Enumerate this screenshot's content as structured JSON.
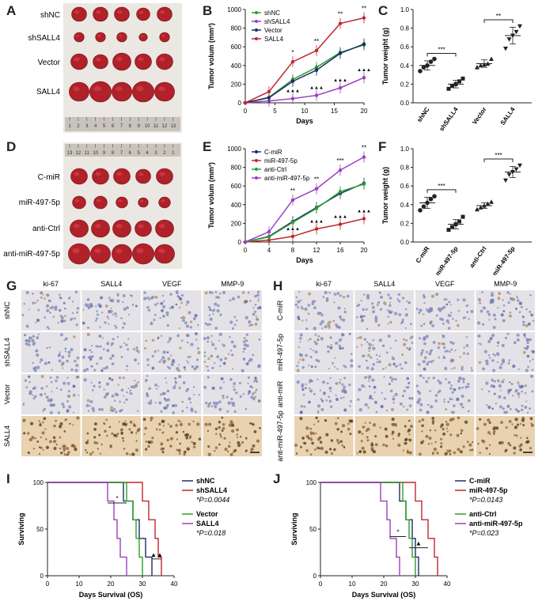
{
  "figure": {
    "panel_letters": [
      "A",
      "B",
      "C",
      "D",
      "E",
      "F",
      "G",
      "H",
      "I",
      "J"
    ]
  },
  "panelA": {
    "rows": [
      "shNC",
      "shSALL4",
      "Vector",
      "SALL4"
    ],
    "ruler": [
      "1",
      "2",
      "3",
      "4",
      "5",
      "6",
      "7",
      "8",
      "9",
      "10",
      "11",
      "12",
      "13"
    ]
  },
  "panelD": {
    "rows": [
      "C-miR",
      "miR-497-5p",
      "anti-Ctrl",
      "anti-miR-497-5p"
    ],
    "ruler": [
      "13",
      "12",
      "11",
      "10",
      "9",
      "8",
      "7",
      "6",
      "5",
      "4",
      "3",
      "2",
      "1"
    ]
  },
  "panelG": {
    "columns": [
      "ki-67",
      "SALL4",
      "VEGF",
      "MMP-9"
    ],
    "rows": [
      "shNC",
      "shSALL4",
      "Vector",
      "SALL4"
    ]
  },
  "panelH": {
    "columns": [
      "ki-67",
      "SALL4",
      "VEGF",
      "MMP-9"
    ],
    "rows": [
      "C-miR",
      "miR-497-5p",
      "anti-miR",
      "anti-miR-497-5p"
    ]
  },
  "colors": {
    "green": "#2ca02c",
    "purple": "#9b3fbf",
    "navy": "#1f2a6b",
    "red": "#c0282d",
    "tumor": "#b0212a",
    "tissue_blue": "#cfd4e6",
    "tissue_brown": "#8a5a2b"
  },
  "chart_data": [
    {
      "id": "B",
      "type": "line",
      "xlabel": "Days",
      "ylabel": "Tumor volum (mm³)",
      "x": [
        0,
        4,
        8,
        12,
        16,
        20
      ],
      "xticks": [
        "0",
        "5",
        "10",
        "15",
        "20"
      ],
      "yticks": [
        "0",
        "200",
        "400",
        "600",
        "800",
        "1000"
      ],
      "ylim": [
        0,
        1000
      ],
      "series": [
        {
          "name": "shNC",
          "color": "#2ca02c",
          "x": [
            0,
            4,
            8,
            12,
            16,
            20
          ],
          "values": [
            0,
            60,
            250,
            380,
            540,
            620
          ]
        },
        {
          "name": "shSALL4",
          "color": "#9b3fbf",
          "x": [
            0,
            4,
            8,
            12,
            16,
            20
          ],
          "values": [
            0,
            20,
            45,
            80,
            160,
            270
          ]
        },
        {
          "name": "Vector",
          "color": "#1f2a6b",
          "x": [
            0,
            4,
            8,
            12,
            16,
            20
          ],
          "values": [
            0,
            55,
            230,
            350,
            530,
            630
          ]
        },
        {
          "name": "SALL4",
          "color": "#c0282d",
          "x": [
            0,
            4,
            8,
            12,
            16,
            20
          ],
          "values": [
            0,
            120,
            440,
            560,
            850,
            910
          ]
        }
      ],
      "annotations_top": [
        "*",
        "**",
        "**",
        "**"
      ],
      "annotations_bottom": [
        "▲▲▲",
        "▲▲▲",
        "▲▲▲",
        "▲▲▲"
      ]
    },
    {
      "id": "E",
      "type": "line",
      "xlabel": "Days",
      "ylabel": "Tumor volum (mm³)",
      "x": [
        0,
        4,
        8,
        12,
        16,
        20
      ],
      "xticks": [
        "0",
        "4",
        "8",
        "12",
        "16",
        "20"
      ],
      "yticks": [
        "0",
        "200",
        "400",
        "600",
        "800",
        "1000"
      ],
      "ylim": [
        0,
        1000
      ],
      "series": [
        {
          "name": "C-miR",
          "color": "#1f2a6b",
          "x": [
            0,
            4,
            8,
            12,
            16,
            20
          ],
          "values": [
            0,
            60,
            220,
            370,
            520,
            630
          ]
        },
        {
          "name": "miR-497-5p",
          "color": "#c0282d",
          "x": [
            0,
            4,
            8,
            12,
            16,
            20
          ],
          "values": [
            0,
            20,
            60,
            140,
            190,
            250
          ]
        },
        {
          "name": "anti-Ctrl",
          "color": "#2ca02c",
          "x": [
            0,
            4,
            8,
            12,
            16,
            20
          ],
          "values": [
            0,
            55,
            210,
            360,
            540,
            620
          ]
        },
        {
          "name": "anti-miR-497-5p",
          "color": "#9b3fbf",
          "x": [
            0,
            4,
            8,
            12,
            16,
            20
          ],
          "values": [
            0,
            110,
            450,
            570,
            770,
            910
          ]
        }
      ],
      "annotations_top": [
        "**",
        "**",
        "***",
        "**"
      ],
      "annotations_bottom": [
        "▲▲▲",
        "▲▲▲",
        "▲▲▲",
        "▲▲▲"
      ]
    },
    {
      "id": "C",
      "type": "scatter",
      "ylabel": "Tumor weight (g)",
      "categories": [
        "shNC",
        "shSALL4",
        "Vector",
        "SALL4"
      ],
      "yticks": [
        "0.0",
        "0.2",
        "0.4",
        "0.6",
        "0.8",
        "1.0"
      ],
      "ylim": [
        0,
        1
      ],
      "points": [
        [
          0.34,
          0.38,
          0.4,
          0.44,
          0.47
        ],
        [
          0.15,
          0.18,
          0.2,
          0.23,
          0.26
        ],
        [
          0.38,
          0.4,
          0.41,
          0.42,
          0.47
        ],
        [
          0.58,
          0.68,
          0.72,
          0.76,
          0.82
        ]
      ],
      "means": [
        0.4,
        0.2,
        0.42,
        0.72
      ],
      "sds": [
        0.05,
        0.04,
        0.04,
        0.09
      ],
      "brackets": [
        {
          "from": 0,
          "to": 1,
          "label": "***"
        },
        {
          "from": 2,
          "to": 3,
          "label": "**"
        }
      ]
    },
    {
      "id": "F",
      "type": "scatter",
      "ylabel": "Tumor weight (g)",
      "categories": [
        "C-miR",
        "miR-497-5p",
        "anti-Ctrl",
        "anti-miR-497-5p"
      ],
      "yticks": [
        "0.0",
        "0.2",
        "0.4",
        "0.6",
        "0.8",
        "1.0"
      ],
      "ylim": [
        0,
        1
      ],
      "points": [
        [
          0.34,
          0.38,
          0.42,
          0.46,
          0.49
        ],
        [
          0.13,
          0.16,
          0.19,
          0.22,
          0.27
        ],
        [
          0.35,
          0.37,
          0.39,
          0.41,
          0.43
        ],
        [
          0.66,
          0.72,
          0.75,
          0.78,
          0.82
        ]
      ],
      "means": [
        0.42,
        0.19,
        0.39,
        0.75
      ],
      "sds": [
        0.06,
        0.05,
        0.03,
        0.06
      ],
      "brackets": [
        {
          "from": 0,
          "to": 1,
          "label": "***"
        },
        {
          "from": 2,
          "to": 3,
          "label": "***"
        }
      ]
    },
    {
      "id": "I",
      "type": "line",
      "xlabel": "Days Survival (OS)",
      "ylabel": "Surviving",
      "xticks": [
        "0",
        "10",
        "20",
        "30",
        "40"
      ],
      "xlim": [
        0,
        40
      ],
      "yticks": [
        "0",
        "50",
        "100"
      ],
      "ylim": [
        0,
        100
      ],
      "series": [
        {
          "name": "shNC",
          "color": "#1f2a6b",
          "x": [
            0,
            24,
            24,
            27,
            27,
            29,
            29,
            31,
            31,
            33
          ],
          "values": [
            100,
            100,
            80,
            80,
            60,
            60,
            40,
            40,
            20,
            0
          ]
        },
        {
          "name": "shSALL4",
          "color": "#c0282d",
          "x": [
            0,
            30,
            30,
            32,
            32,
            34,
            34,
            35,
            35,
            36
          ],
          "values": [
            100,
            100,
            80,
            80,
            60,
            60,
            40,
            40,
            20,
            0
          ]
        },
        {
          "name": "Vector",
          "color": "#2ca02c",
          "x": [
            0,
            25,
            25,
            27,
            27,
            28,
            28,
            29,
            29,
            30
          ],
          "values": [
            100,
            100,
            80,
            80,
            60,
            60,
            40,
            40,
            20,
            0
          ]
        },
        {
          "name": "SALL4",
          "color": "#9b3fbf",
          "x": [
            0,
            19,
            19,
            21,
            21,
            22,
            22,
            23,
            23,
            25
          ],
          "values": [
            100,
            100,
            80,
            80,
            60,
            60,
            40,
            40,
            20,
            0
          ]
        }
      ],
      "legend_pvalues": [
        "*P=0.0044",
        "*P=0.018"
      ],
      "sig_marks": [
        {
          "label": "*",
          "x1": 19,
          "x2": 25,
          "y": 78
        },
        {
          "label": "▲▲",
          "x1": 33,
          "x2": 36,
          "y": 18
        }
      ]
    },
    {
      "id": "J",
      "type": "line",
      "xlabel": "Days Survival (OS)",
      "ylabel": "Surviving",
      "xticks": [
        "0",
        "10",
        "20",
        "30",
        "40"
      ],
      "xlim": [
        0,
        40
      ],
      "yticks": [
        "0",
        "50",
        "100"
      ],
      "ylim": [
        0,
        100
      ],
      "series": [
        {
          "name": "C-miR",
          "color": "#1f2a6b",
          "x": [
            0,
            25,
            25,
            27,
            27,
            29,
            29,
            30,
            30,
            31
          ],
          "values": [
            100,
            100,
            80,
            80,
            60,
            60,
            40,
            40,
            20,
            0
          ]
        },
        {
          "name": "miR-497-5p",
          "color": "#c0282d",
          "x": [
            0,
            30,
            30,
            32,
            32,
            34,
            34,
            36,
            36,
            37
          ],
          "values": [
            100,
            100,
            80,
            80,
            60,
            60,
            40,
            40,
            20,
            0
          ]
        },
        {
          "name": "anti-Ctrl",
          "color": "#2ca02c",
          "x": [
            0,
            26,
            26,
            27,
            27,
            28,
            28,
            29,
            29,
            30
          ],
          "values": [
            100,
            100,
            80,
            80,
            60,
            60,
            40,
            40,
            20,
            0
          ]
        },
        {
          "name": "anti-miR-497-5p",
          "color": "#9b3fbf",
          "x": [
            0,
            19,
            19,
            21,
            21,
            22,
            22,
            24,
            24,
            25
          ],
          "values": [
            100,
            100,
            80,
            80,
            60,
            60,
            40,
            40,
            20,
            0
          ]
        }
      ],
      "legend_pvalues": [
        "*P=0.0143",
        "*P=0.023"
      ],
      "sig_marks": [
        {
          "label": "*",
          "x1": 22,
          "x2": 27,
          "y": 42
        },
        {
          "label": "▲",
          "x1": 28,
          "x2": 34,
          "y": 30
        }
      ]
    }
  ]
}
